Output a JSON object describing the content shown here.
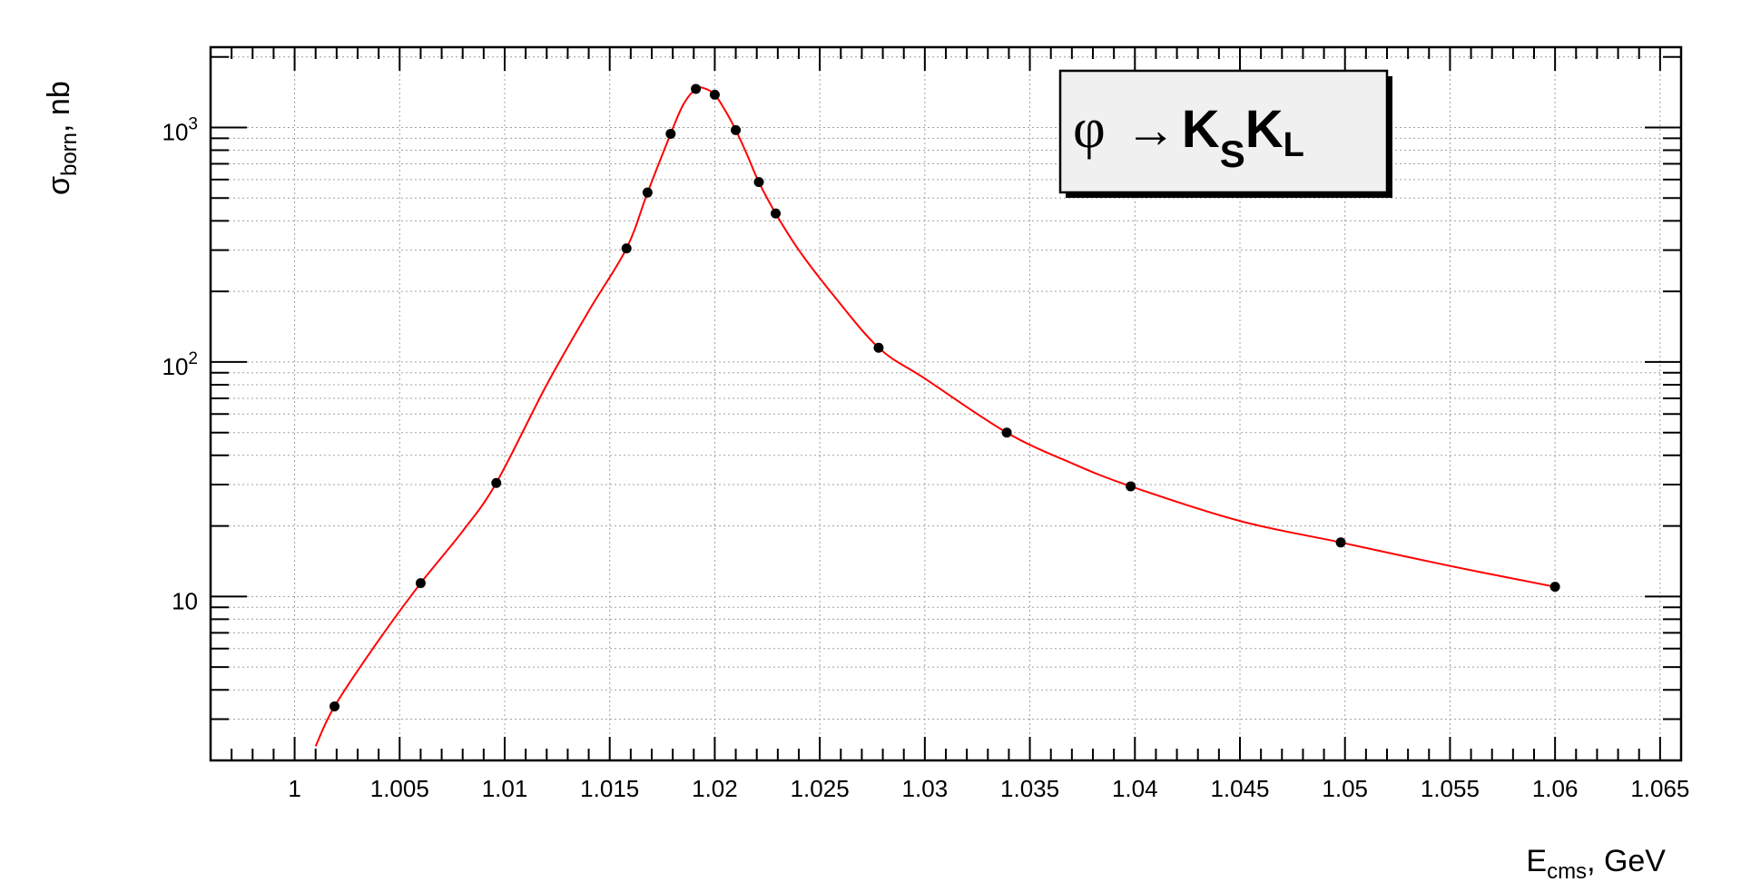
{
  "chart_data": {
    "type": "scatter",
    "x": [
      1.0019,
      1.006,
      1.0096,
      1.0158,
      1.0168,
      1.0179,
      1.0191,
      1.02,
      1.021,
      1.0221,
      1.0229,
      1.0278,
      1.0339,
      1.0398,
      1.0498,
      1.06
    ],
    "y": [
      3.4,
      11.4,
      30.5,
      305,
      528,
      940,
      1460,
      1380,
      975,
      585,
      430,
      115,
      50,
      29.5,
      17,
      11
    ],
    "fit_curve": {
      "x": [
        1.001,
        1.0019,
        1.004,
        1.006,
        1.008,
        1.0096,
        1.012,
        1.014,
        1.0158,
        1.0168,
        1.0179,
        1.0185,
        1.0191,
        1.0195,
        1.02,
        1.0205,
        1.021,
        1.0215,
        1.0221,
        1.0229,
        1.024,
        1.0255,
        1.0278,
        1.03,
        1.0339,
        1.037,
        1.0398,
        1.045,
        1.0498,
        1.055,
        1.06
      ],
      "y": [
        2.3,
        3.4,
        6.5,
        11.4,
        19,
        30.5,
        80,
        165,
        305,
        528,
        940,
        1250,
        1460,
        1470,
        1380,
        1180,
        975,
        780,
        585,
        430,
        300,
        200,
        115,
        85,
        50,
        37,
        29.5,
        21,
        17,
        13.5,
        11
      ]
    },
    "xlabel_main": "E",
    "xlabel_sub": "cms",
    "xlabel_unit": ", GeV",
    "ylabel_main": "σ",
    "ylabel_sub": "born",
    "ylabel_unit": ", nb",
    "xlim": [
      0.996,
      1.066
    ],
    "ylim": [
      2.0,
      2200
    ],
    "y_log": true,
    "x_ticks": [
      "1",
      "1.005",
      "1.01",
      "1.015",
      "1.02",
      "1.025",
      "1.03",
      "1.035",
      "1.04",
      "1.045",
      "1.05",
      "1.055",
      "1.06",
      "1.065"
    ],
    "y_ticks": [
      {
        "value": 10,
        "label": "10",
        "sup": ""
      },
      {
        "value": 100,
        "label": "10",
        "sup": "2"
      },
      {
        "value": 1000,
        "label": "10",
        "sup": "3"
      }
    ],
    "grid": true,
    "legend": {
      "placement": "top-right",
      "phi": "φ",
      "arrow": "→",
      "k1": "K",
      "k1_sub": "S",
      "k2": "K",
      "k2_sub": "L"
    },
    "colors": {
      "curve": "#ff0000",
      "points": "#000000",
      "grid": "#a0a0a0",
      "legend_bg": "#f0f0f0"
    }
  }
}
